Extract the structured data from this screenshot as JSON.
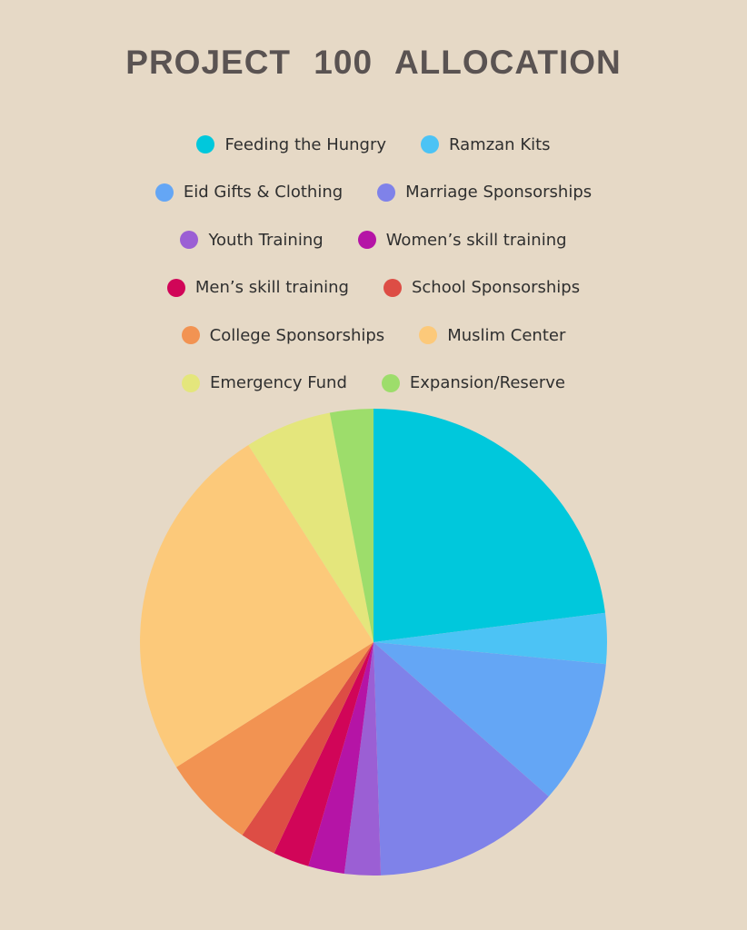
{
  "chart_data": {
    "type": "pie",
    "title": "PROJECT 100   ALLOCATION",
    "legend_placement": "top",
    "slices": [
      {
        "label": "Feeding the Hungry",
        "value": 23.0,
        "color": "#00c8dc"
      },
      {
        "label": "Ramzan Kits",
        "value": 3.5,
        "color": "#4cc3f5"
      },
      {
        "label": "Eid Gifts & Clothing",
        "value": 10.0,
        "color": "#64a6f5"
      },
      {
        "label": "Marriage Sponsorships",
        "value": 13.0,
        "color": "#7f82e9"
      },
      {
        "label": "Youth Training",
        "value": 2.5,
        "color": "#9b5fd4"
      },
      {
        "label": "Women’s skill training",
        "value": 2.5,
        "color": "#b514a6"
      },
      {
        "label": "Men’s skill training",
        "value": 2.5,
        "color": "#d10558"
      },
      {
        "label": "School Sponsorships",
        "value": 2.5,
        "color": "#dd4d45"
      },
      {
        "label": "College Sponsorships",
        "value": 6.5,
        "color": "#f29352"
      },
      {
        "label": "Muslim Center",
        "value": 25.0,
        "color": "#fcc97a"
      },
      {
        "label": "Emergency Fund",
        "value": 6.0,
        "color": "#e4e67c"
      },
      {
        "label": "Expansion/Reserve",
        "value": 3.0,
        "color": "#9ddd6b"
      }
    ]
  }
}
